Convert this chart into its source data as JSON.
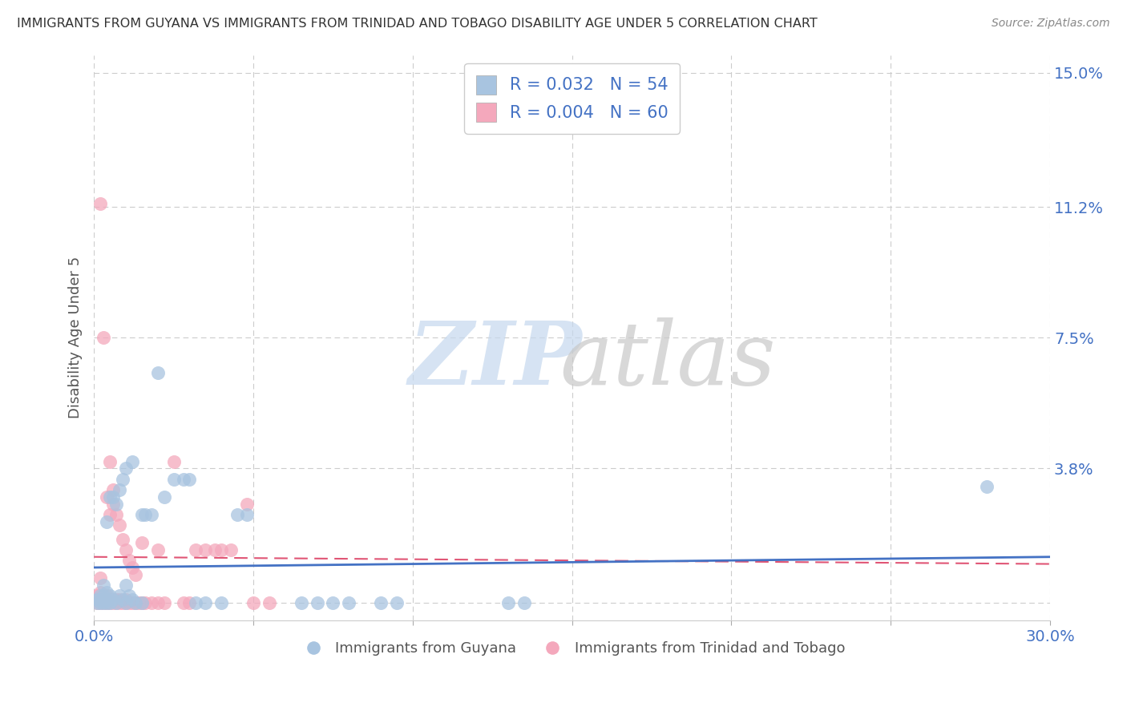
{
  "title": "IMMIGRANTS FROM GUYANA VS IMMIGRANTS FROM TRINIDAD AND TOBAGO DISABILITY AGE UNDER 5 CORRELATION CHART",
  "source": "Source: ZipAtlas.com",
  "ylabel": "Disability Age Under 5",
  "xlabel": "",
  "xlim": [
    0.0,
    0.3
  ],
  "ylim": [
    -0.005,
    0.155
  ],
  "yticks": [
    0.0,
    0.038,
    0.075,
    0.112,
    0.15
  ],
  "ytick_labels": [
    "",
    "3.8%",
    "7.5%",
    "11.2%",
    "15.0%"
  ],
  "xticks": [
    0.0,
    0.05,
    0.1,
    0.15,
    0.2,
    0.25,
    0.3
  ],
  "guyana_color": "#a8c4e0",
  "trinidad_color": "#f4a8bc",
  "guyana_line_color": "#4472c4",
  "trinidad_line_color": "#e05575",
  "guyana_R": 0.032,
  "guyana_N": 54,
  "trinidad_R": 0.004,
  "trinidad_N": 60,
  "background_color": "#ffffff",
  "grid_color": "#cccccc",
  "guyana_scatter": [
    [
      0.001,
      0.0
    ],
    [
      0.001,
      0.001
    ],
    [
      0.002,
      0.0
    ],
    [
      0.002,
      0.001
    ],
    [
      0.002,
      0.002
    ],
    [
      0.003,
      0.0
    ],
    [
      0.003,
      0.001
    ],
    [
      0.003,
      0.002
    ],
    [
      0.003,
      0.005
    ],
    [
      0.004,
      0.0
    ],
    [
      0.004,
      0.001
    ],
    [
      0.004,
      0.003
    ],
    [
      0.004,
      0.023
    ],
    [
      0.005,
      0.0
    ],
    [
      0.005,
      0.002
    ],
    [
      0.005,
      0.03
    ],
    [
      0.006,
      0.001
    ],
    [
      0.006,
      0.03
    ],
    [
      0.007,
      0.0
    ],
    [
      0.007,
      0.028
    ],
    [
      0.008,
      0.002
    ],
    [
      0.008,
      0.032
    ],
    [
      0.009,
      0.001
    ],
    [
      0.009,
      0.035
    ],
    [
      0.01,
      0.0
    ],
    [
      0.01,
      0.005
    ],
    [
      0.01,
      0.038
    ],
    [
      0.011,
      0.002
    ],
    [
      0.012,
      0.001
    ],
    [
      0.012,
      0.04
    ],
    [
      0.013,
      0.0
    ],
    [
      0.015,
      0.0
    ],
    [
      0.015,
      0.025
    ],
    [
      0.016,
      0.025
    ],
    [
      0.018,
      0.025
    ],
    [
      0.02,
      0.065
    ],
    [
      0.022,
      0.03
    ],
    [
      0.025,
      0.035
    ],
    [
      0.028,
      0.035
    ],
    [
      0.03,
      0.035
    ],
    [
      0.032,
      0.0
    ],
    [
      0.035,
      0.0
    ],
    [
      0.04,
      0.0
    ],
    [
      0.045,
      0.025
    ],
    [
      0.048,
      0.025
    ],
    [
      0.065,
      0.0
    ],
    [
      0.07,
      0.0
    ],
    [
      0.075,
      0.0
    ],
    [
      0.08,
      0.0
    ],
    [
      0.09,
      0.0
    ],
    [
      0.095,
      0.0
    ],
    [
      0.13,
      0.0
    ],
    [
      0.135,
      0.0
    ],
    [
      0.28,
      0.033
    ]
  ],
  "trinidad_scatter": [
    [
      0.001,
      0.0
    ],
    [
      0.001,
      0.001
    ],
    [
      0.001,
      0.002
    ],
    [
      0.002,
      0.0
    ],
    [
      0.002,
      0.001
    ],
    [
      0.002,
      0.003
    ],
    [
      0.002,
      0.007
    ],
    [
      0.002,
      0.113
    ],
    [
      0.003,
      0.0
    ],
    [
      0.003,
      0.001
    ],
    [
      0.003,
      0.002
    ],
    [
      0.003,
      0.075
    ],
    [
      0.004,
      0.0
    ],
    [
      0.004,
      0.001
    ],
    [
      0.004,
      0.002
    ],
    [
      0.004,
      0.03
    ],
    [
      0.005,
      0.0
    ],
    [
      0.005,
      0.001
    ],
    [
      0.005,
      0.025
    ],
    [
      0.005,
      0.04
    ],
    [
      0.006,
      0.0
    ],
    [
      0.006,
      0.001
    ],
    [
      0.006,
      0.028
    ],
    [
      0.006,
      0.032
    ],
    [
      0.007,
      0.0
    ],
    [
      0.007,
      0.001
    ],
    [
      0.007,
      0.025
    ],
    [
      0.008,
      0.0
    ],
    [
      0.008,
      0.001
    ],
    [
      0.008,
      0.022
    ],
    [
      0.009,
      0.0
    ],
    [
      0.009,
      0.018
    ],
    [
      0.01,
      0.0
    ],
    [
      0.01,
      0.001
    ],
    [
      0.01,
      0.015
    ],
    [
      0.011,
      0.0
    ],
    [
      0.011,
      0.012
    ],
    [
      0.012,
      0.0
    ],
    [
      0.012,
      0.01
    ],
    [
      0.013,
      0.0
    ],
    [
      0.013,
      0.008
    ],
    [
      0.014,
      0.0
    ],
    [
      0.015,
      0.0
    ],
    [
      0.015,
      0.017
    ],
    [
      0.016,
      0.0
    ],
    [
      0.018,
      0.0
    ],
    [
      0.02,
      0.0
    ],
    [
      0.02,
      0.015
    ],
    [
      0.022,
      0.0
    ],
    [
      0.025,
      0.04
    ],
    [
      0.028,
      0.0
    ],
    [
      0.03,
      0.0
    ],
    [
      0.032,
      0.015
    ],
    [
      0.035,
      0.015
    ],
    [
      0.038,
      0.015
    ],
    [
      0.04,
      0.015
    ],
    [
      0.043,
      0.015
    ],
    [
      0.048,
      0.028
    ],
    [
      0.05,
      0.0
    ],
    [
      0.055,
      0.0
    ]
  ],
  "guyana_trend": [
    0.0,
    0.3,
    0.01,
    0.013
  ],
  "trinidad_trend": [
    0.0,
    0.3,
    0.012,
    0.012
  ]
}
